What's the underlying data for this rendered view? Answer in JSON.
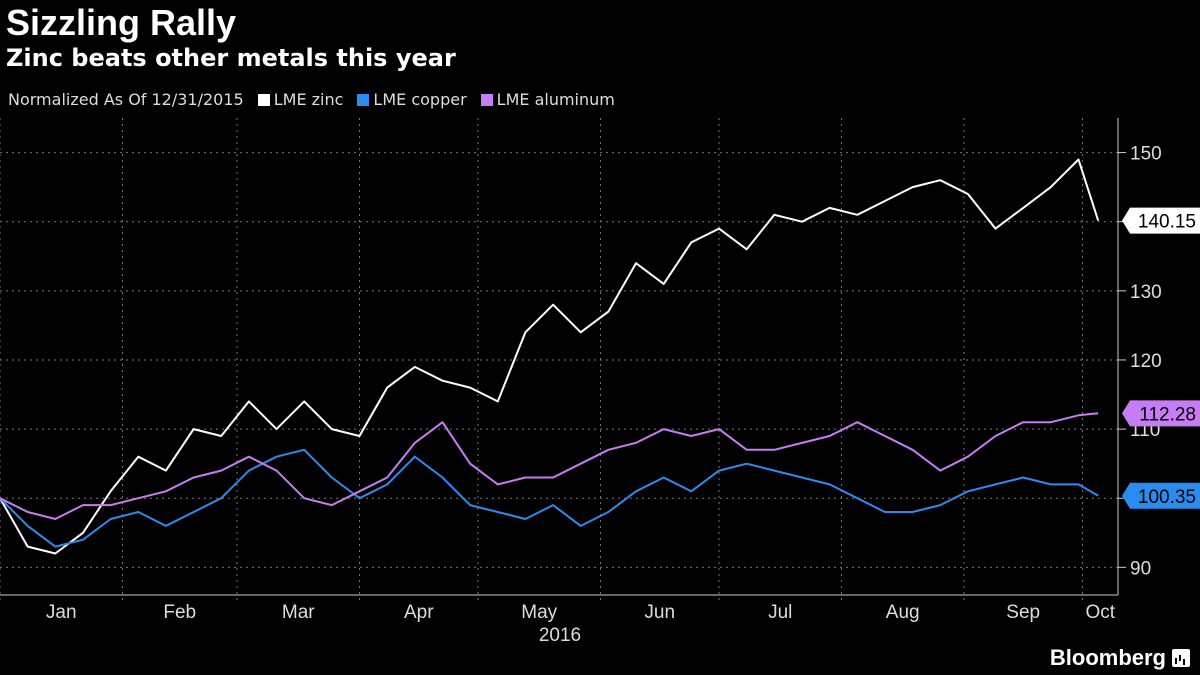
{
  "header": {
    "title": "Sizzling Rally",
    "subtitle": "Zinc beats other metals this year"
  },
  "legend": {
    "note": "Normalized As Of 12/31/2015",
    "items": [
      {
        "label": "LME zinc",
        "color": "#ffffff"
      },
      {
        "label": "LME copper",
        "color": "#2b8cf0"
      },
      {
        "label": "LME aluminum",
        "color": "#c67cf5"
      }
    ]
  },
  "brand": {
    "name": "Bloomberg",
    "icon": "bloomberg-logo-icon"
  },
  "chart_data": {
    "type": "line",
    "x_label": "2016",
    "x_ticks": [
      "Jan",
      "Feb",
      "Mar",
      "Apr",
      "May",
      "Jun",
      "Jul",
      "Aug",
      "Sep",
      "Oct"
    ],
    "y_ticks": [
      90,
      100,
      110,
      120,
      130,
      140,
      150
    ],
    "y_tick_labels": [
      "90",
      "",
      "110",
      "120",
      "130",
      "",
      "150"
    ],
    "ylim": [
      86,
      155
    ],
    "grid": true,
    "x": [
      "2016-01-01",
      "2016-01-08",
      "2016-01-15",
      "2016-01-22",
      "2016-01-29",
      "2016-02-05",
      "2016-02-12",
      "2016-02-19",
      "2016-02-26",
      "2016-03-04",
      "2016-03-11",
      "2016-03-18",
      "2016-03-25",
      "2016-04-01",
      "2016-04-08",
      "2016-04-15",
      "2016-04-22",
      "2016-04-29",
      "2016-05-06",
      "2016-05-13",
      "2016-05-20",
      "2016-05-27",
      "2016-06-03",
      "2016-06-10",
      "2016-06-17",
      "2016-06-24",
      "2016-07-01",
      "2016-07-08",
      "2016-07-15",
      "2016-07-22",
      "2016-07-29",
      "2016-08-05",
      "2016-08-12",
      "2016-08-19",
      "2016-08-26",
      "2016-09-02",
      "2016-09-09",
      "2016-09-16",
      "2016-09-23",
      "2016-09-30",
      "2016-10-05"
    ],
    "series": [
      {
        "name": "LME zinc",
        "color": "#ffffff",
        "end_label": "140.15",
        "values": [
          100,
          93,
          92,
          95,
          101,
          106,
          104,
          110,
          109,
          114,
          110,
          114,
          110,
          109,
          116,
          119,
          117,
          116,
          114,
          124,
          128,
          124,
          127,
          134,
          131,
          137,
          139,
          136,
          141,
          140,
          142,
          141,
          143,
          145,
          146,
          144,
          139,
          142,
          145,
          149,
          140.15
        ]
      },
      {
        "name": "LME copper",
        "color": "#2b8cf0",
        "end_label": "100.35",
        "values": [
          100,
          96,
          93,
          94,
          97,
          98,
          96,
          98,
          100,
          104,
          106,
          107,
          103,
          100,
          102,
          106,
          103,
          99,
          98,
          97,
          99,
          96,
          98,
          101,
          103,
          101,
          104,
          105,
          104,
          103,
          102,
          100,
          98,
          98,
          99,
          101,
          102,
          103,
          102,
          102,
          100.35
        ]
      },
      {
        "name": "LME aluminum",
        "color": "#c67cf5",
        "end_label": "112.28",
        "values": [
          100,
          98,
          97,
          99,
          99,
          100,
          101,
          103,
          104,
          106,
          104,
          100,
          99,
          101,
          103,
          108,
          111,
          105,
          102,
          103,
          103,
          105,
          107,
          108,
          110,
          109,
          110,
          107,
          107,
          108,
          109,
          111,
          109,
          107,
          104,
          106,
          109,
          111,
          111,
          112,
          112.28
        ]
      }
    ]
  }
}
